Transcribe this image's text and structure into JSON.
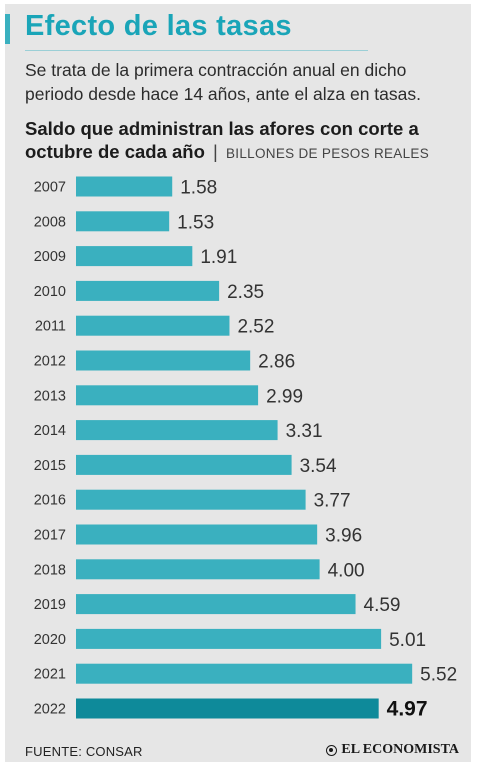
{
  "header": {
    "title": "Efecto de las tasas",
    "subtitle": "Se trata de la primera contracción anual en dicho periodo desde hace 14 años, ante el alza en tasas."
  },
  "chart_heading": {
    "title": "Saldo que administran las afores con corte a octubre de cada año",
    "separator": "|",
    "unit": "BILLONES DE PESOS REALES"
  },
  "chart_data": {
    "type": "bar",
    "orientation": "horizontal",
    "title": "Saldo que administran las afores con corte a octubre de cada año",
    "ylabel": "BILLONES DE PESOS REALES",
    "categories": [
      "2007",
      "2008",
      "2009",
      "2010",
      "2011",
      "2012",
      "2013",
      "2014",
      "2015",
      "2016",
      "2017",
      "2018",
      "2019",
      "2020",
      "2021",
      "2022"
    ],
    "values": [
      1.58,
      1.53,
      1.91,
      2.35,
      2.52,
      2.86,
      2.99,
      3.31,
      3.54,
      3.77,
      3.96,
      4.0,
      4.59,
      5.01,
      5.52,
      4.97
    ],
    "value_labels": [
      "1.58",
      "1.53",
      "1.91",
      "2.35",
      "2.52",
      "2.86",
      "2.99",
      "3.31",
      "3.54",
      "3.77",
      "3.96",
      "4.00",
      "4.59",
      "5.01",
      "5.52",
      "4.97"
    ],
    "highlight_index": 15,
    "colors": {
      "bar": "#3ab0bf",
      "highlight": "#0e8a9a"
    },
    "grid": false,
    "legend": "none"
  },
  "footer": {
    "source": "FUENTE: CONSAR",
    "brand": "EL ECONOMISTA",
    "brand_icon": "globe-icon"
  }
}
